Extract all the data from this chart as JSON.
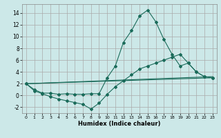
{
  "xlabel": "Humidex (Indice chaleur)",
  "ylabel": "",
  "xlim": [
    -0.5,
    23.5
  ],
  "ylim": [
    -3,
    15.5
  ],
  "yticks": [
    -2,
    0,
    2,
    4,
    6,
    8,
    10,
    12,
    14
  ],
  "xticks": [
    0,
    1,
    2,
    3,
    4,
    5,
    6,
    7,
    8,
    9,
    10,
    11,
    12,
    13,
    14,
    15,
    16,
    17,
    18,
    19,
    20,
    21,
    22,
    23
  ],
  "bg_color": "#cce8e8",
  "grid_color": "#aaaaaa",
  "line_color": "#1a6b5a",
  "series1_x": [
    0,
    1,
    2,
    3,
    4,
    5,
    6,
    7,
    8,
    9,
    10,
    11,
    12,
    13,
    14,
    15,
    16,
    17,
    18,
    19,
    20,
    21,
    22,
    23
  ],
  "series1_y": [
    2.0,
    1.0,
    0.4,
    0.4,
    0.2,
    0.3,
    0.2,
    0.2,
    0.3,
    0.3,
    3.0,
    5.0,
    9.0,
    11.0,
    13.5,
    14.5,
    12.5,
    9.5,
    7.0,
    5.0,
    5.5,
    4.0,
    3.2,
    3.0
  ],
  "series2_x": [
    0,
    1,
    2,
    3,
    4,
    5,
    6,
    7,
    8,
    9,
    10,
    11,
    12,
    13,
    14,
    15,
    16,
    17,
    18,
    19,
    20,
    21,
    22,
    23
  ],
  "series2_y": [
    2.0,
    0.8,
    0.3,
    -0.2,
    -0.6,
    -0.9,
    -1.2,
    -1.5,
    -2.3,
    -1.3,
    0.2,
    1.5,
    2.5,
    3.5,
    4.5,
    5.0,
    5.5,
    6.0,
    6.5,
    7.0,
    5.5,
    4.0,
    3.2,
    3.0
  ],
  "line3_x": [
    0,
    23
  ],
  "line3_y": [
    2.0,
    3.0
  ],
  "line4_x": [
    0,
    23
  ],
  "line4_y": [
    2.0,
    3.2
  ]
}
